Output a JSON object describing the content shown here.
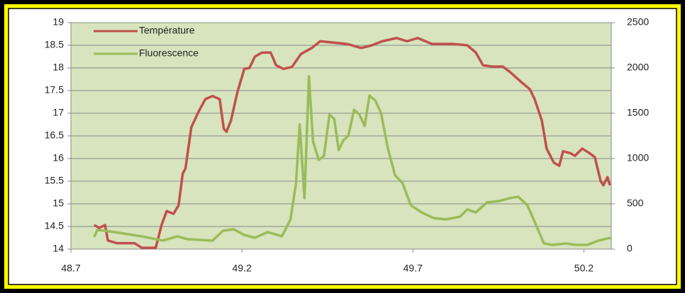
{
  "chart_data": {
    "type": "line",
    "xlim": [
      48.7,
      50.28
    ],
    "xticks": [
      48.7,
      49.2,
      49.7,
      50.2
    ],
    "ylim": [
      14,
      19
    ],
    "yticks": [
      14,
      14.5,
      15,
      15.5,
      16,
      16.5,
      17,
      17.5,
      18,
      18.5,
      19
    ],
    "y2lim": [
      0,
      2500
    ],
    "y2ticks": [
      0,
      500,
      1000,
      1500,
      2000,
      2500
    ],
    "grid": true,
    "legend": "top-left",
    "plot_background": "#d7e4bd",
    "series": [
      {
        "name": "Température",
        "color": "#c0504d",
        "x": [
          48.768,
          48.783,
          48.8,
          48.808,
          48.835,
          48.886,
          48.907,
          48.948,
          48.965,
          48.98,
          49.0,
          49.015,
          49.027,
          49.035,
          49.052,
          49.073,
          49.093,
          49.114,
          49.135,
          49.147,
          49.155,
          49.168,
          49.187,
          49.207,
          49.222,
          49.238,
          49.259,
          49.284,
          49.3,
          49.321,
          49.346,
          49.373,
          49.404,
          49.429,
          49.466,
          49.507,
          49.549,
          49.58,
          49.611,
          49.652,
          49.683,
          49.714,
          49.756,
          49.818,
          49.859,
          49.884,
          49.905,
          49.932,
          49.963,
          49.984,
          50.015,
          50.042,
          50.056,
          50.077,
          50.091,
          50.112,
          50.128,
          50.139,
          50.16,
          50.174,
          50.195,
          50.216,
          50.232,
          50.249,
          50.257,
          50.269,
          50.276
        ],
        "values": [
          14.53,
          14.47,
          14.53,
          14.19,
          14.13,
          14.13,
          14.03,
          14.03,
          14.53,
          14.84,
          14.78,
          14.97,
          15.67,
          15.78,
          16.69,
          17.03,
          17.31,
          17.38,
          17.31,
          16.66,
          16.59,
          16.84,
          17.47,
          17.98,
          18.0,
          18.25,
          18.34,
          18.34,
          18.06,
          17.98,
          18.02,
          18.31,
          18.44,
          18.59,
          18.56,
          18.53,
          18.44,
          18.5,
          18.59,
          18.66,
          18.59,
          18.66,
          18.53,
          18.53,
          18.5,
          18.34,
          18.06,
          18.03,
          18.03,
          17.91,
          17.7,
          17.53,
          17.31,
          16.84,
          16.22,
          15.91,
          15.84,
          16.16,
          16.12,
          16.06,
          16.22,
          16.12,
          16.03,
          15.5,
          15.41,
          15.59,
          15.41
        ]
      },
      {
        "name": "Fluorescence",
        "color": "#9bbb59",
        "axis": "y2",
        "x": [
          48.768,
          48.777,
          48.8,
          48.855,
          48.907,
          48.969,
          49.011,
          49.042,
          49.114,
          49.145,
          49.176,
          49.207,
          49.238,
          49.275,
          49.29,
          49.317,
          49.342,
          49.358,
          49.369,
          49.383,
          49.396,
          49.408,
          49.425,
          49.44,
          49.456,
          49.47,
          49.483,
          49.497,
          49.511,
          49.528,
          49.544,
          49.559,
          49.573,
          49.59,
          49.607,
          49.627,
          49.648,
          49.669,
          49.694,
          49.725,
          49.76,
          49.797,
          49.838,
          49.859,
          49.884,
          49.917,
          49.952,
          49.984,
          50.008,
          50.035,
          50.062,
          50.083,
          50.108,
          50.149,
          50.174,
          50.211,
          50.242,
          50.278
        ],
        "values": [
          133,
          211,
          203,
          172,
          141,
          94,
          141,
          109,
          94,
          203,
          219,
          156,
          125,
          188,
          172,
          141,
          328,
          719,
          1375,
          563,
          1906,
          1188,
          984,
          1031,
          1484,
          1438,
          1094,
          1203,
          1250,
          1539,
          1484,
          1359,
          1695,
          1641,
          1500,
          1109,
          813,
          734,
          484,
          406,
          344,
          328,
          359,
          438,
          406,
          516,
          531,
          563,
          578,
          484,
          250,
          63,
          47,
          63,
          47,
          47,
          94,
          125
        ]
      }
    ]
  }
}
